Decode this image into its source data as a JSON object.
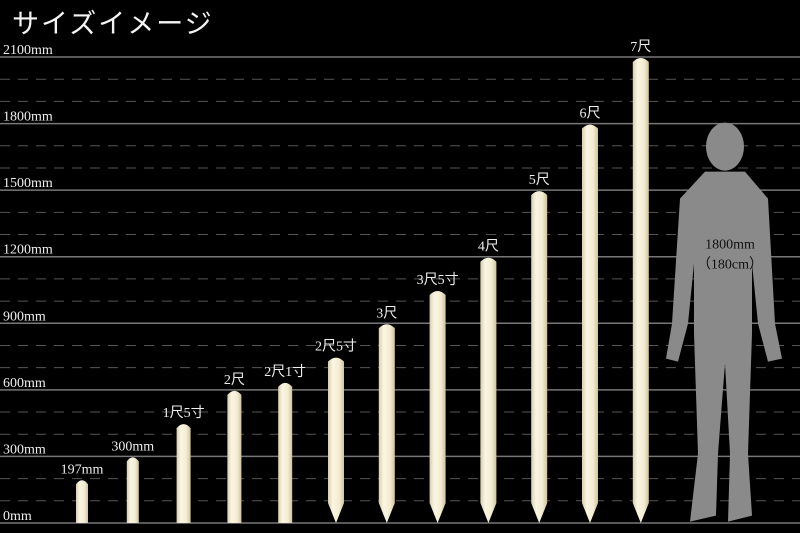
{
  "title": "サイズイメージ",
  "chart_data": {
    "type": "bar",
    "title": "サイズイメージ",
    "ylim": [
      0,
      2100
    ],
    "yticks": [
      0,
      300,
      600,
      900,
      1200,
      1500,
      1800,
      2100
    ],
    "ytick_labels": [
      "0mm",
      "300mm",
      "600mm",
      "900mm",
      "1200mm",
      "1500mm",
      "1800mm",
      "2100mm"
    ],
    "minor_grid_step": 100,
    "grid": true,
    "categories": [
      "197mm",
      "300mm",
      "1尺5寸",
      "2尺",
      "2尺1寸",
      "2尺5寸",
      "3尺",
      "3尺5寸",
      "4尺",
      "5尺",
      "6尺",
      "7尺"
    ],
    "values": [
      197,
      300,
      450,
      600,
      636,
      750,
      900,
      1050,
      1200,
      1500,
      1800,
      2100
    ],
    "bar_color": "#f3ecd2",
    "reference": {
      "label_line1": "1800mm",
      "label_line2": "（180cm）",
      "value": 1800,
      "color": "#8a8a8a"
    }
  }
}
